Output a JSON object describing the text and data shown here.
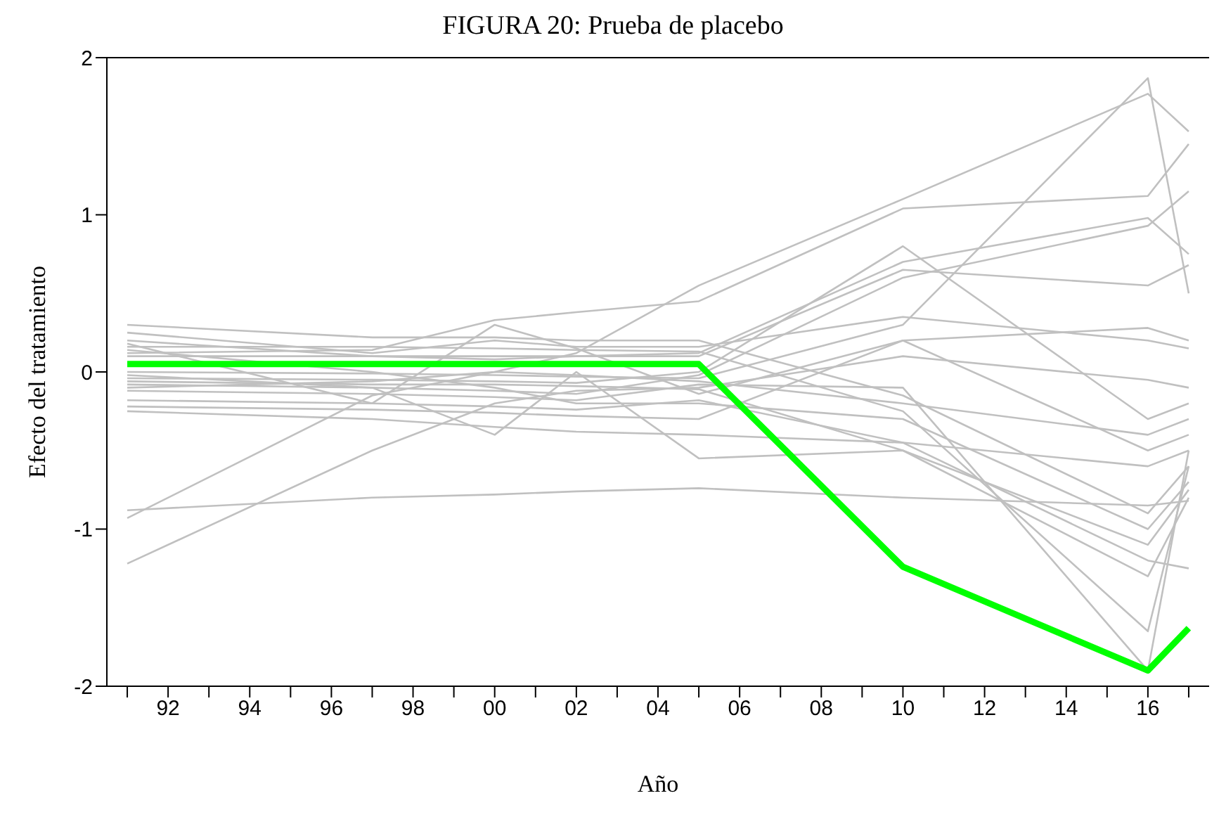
{
  "chart_data": {
    "type": "line",
    "title": "FIGURA 20: Prueba de placebo",
    "xlabel": "Año",
    "ylabel": "Efecto del tratamiento",
    "x": [
      1991,
      1997,
      2000,
      2002,
      2005,
      2010,
      2016,
      2017
    ],
    "xlim": [
      1990.5,
      2017.5
    ],
    "xticks": [
      {
        "value": 1991,
        "label": null
      },
      {
        "value": 1992,
        "label": "92"
      },
      {
        "value": 1993,
        "label": null
      },
      {
        "value": 1994,
        "label": "94"
      },
      {
        "value": 1995,
        "label": null
      },
      {
        "value": 1996,
        "label": "96"
      },
      {
        "value": 1997,
        "label": null
      },
      {
        "value": 1998,
        "label": "98"
      },
      {
        "value": 1999,
        "label": null
      },
      {
        "value": 2000,
        "label": "00"
      },
      {
        "value": 2001,
        "label": null
      },
      {
        "value": 2002,
        "label": "02"
      },
      {
        "value": 2003,
        "label": null
      },
      {
        "value": 2004,
        "label": "04"
      },
      {
        "value": 2005,
        "label": null
      },
      {
        "value": 2006,
        "label": "06"
      },
      {
        "value": 2007,
        "label": null
      },
      {
        "value": 2008,
        "label": "08"
      },
      {
        "value": 2009,
        "label": null
      },
      {
        "value": 2010,
        "label": "10"
      },
      {
        "value": 2011,
        "label": null
      },
      {
        "value": 2012,
        "label": "12"
      },
      {
        "value": 2013,
        "label": null
      },
      {
        "value": 2014,
        "label": "14"
      },
      {
        "value": 2015,
        "label": null
      },
      {
        "value": 2016,
        "label": "16"
      },
      {
        "value": 2017,
        "label": null
      }
    ],
    "ylim": [
      -2,
      2
    ],
    "yticks": [
      -2,
      -1,
      0,
      1,
      2
    ],
    "marker": "none",
    "line_style": "solid",
    "series": [
      {
        "color": "#c0c0c0",
        "values": [
          0.12,
          0.14,
          0.33,
          0.38,
          0.45,
          1.04,
          1.12,
          1.45
        ]
      },
      {
        "color": "#c0c0c0",
        "values": [
          -0.1,
          -0.06,
          0.0,
          0.12,
          0.55,
          1.1,
          1.77,
          1.53
        ]
      },
      {
        "color": "#c0c0c0",
        "values": [
          0.0,
          -0.01,
          -0.02,
          -0.03,
          -0.04,
          0.3,
          1.87,
          0.5
        ]
      },
      {
        "color": "#c0c0c0",
        "values": [
          -0.04,
          -0.05,
          -0.06,
          -0.07,
          0.0,
          0.8,
          -0.3,
          -0.2
        ]
      },
      {
        "color": "#c0c0c0",
        "values": [
          0.2,
          0.1,
          0.08,
          0.1,
          0.12,
          0.7,
          0.98,
          0.75
        ]
      },
      {
        "color": "#c0c0c0",
        "values": [
          -0.08,
          -0.1,
          -0.12,
          -0.14,
          -0.02,
          0.6,
          0.93,
          1.15
        ]
      },
      {
        "color": "#c0c0c0",
        "values": [
          0.1,
          0.1,
          0.1,
          0.1,
          0.1,
          0.65,
          0.55,
          0.68
        ]
      },
      {
        "color": "#c0c0c0",
        "values": [
          0.25,
          0.12,
          0.2,
          0.16,
          0.16,
          0.35,
          0.2,
          0.15
        ]
      },
      {
        "color": "#c0c0c0",
        "values": [
          -0.25,
          -0.3,
          -0.35,
          -0.38,
          -0.4,
          -0.45,
          -0.6,
          -0.5
        ]
      },
      {
        "color": "#c0c0c0",
        "values": [
          -1.22,
          -0.5,
          -0.2,
          -0.12,
          -0.1,
          0.1,
          -0.05,
          -0.1
        ]
      },
      {
        "color": "#c0c0c0",
        "values": [
          -0.93,
          -0.15,
          0.0,
          -0.02,
          -0.06,
          -0.2,
          -0.4,
          -0.3
        ]
      },
      {
        "color": "#c0c0c0",
        "values": [
          -0.88,
          -0.8,
          -0.78,
          -0.76,
          -0.74,
          -0.8,
          -0.85,
          -0.82
        ]
      },
      {
        "color": "#c0c0c0",
        "values": [
          0.18,
          -0.2,
          0.3,
          0.15,
          -0.14,
          0.2,
          -0.5,
          -0.4
        ]
      },
      {
        "color": "#c0c0c0",
        "values": [
          0.14,
          0.0,
          -0.1,
          -0.2,
          -0.2,
          -0.3,
          -1.0,
          -0.7
        ]
      },
      {
        "color": "#c0c0c0",
        "values": [
          -0.02,
          -0.1,
          -0.4,
          0.0,
          -0.55,
          -0.5,
          -1.3,
          -0.8
        ]
      },
      {
        "color": "#c0c0c0",
        "values": [
          -0.12,
          -0.14,
          -0.16,
          -0.18,
          -0.08,
          -0.1,
          -1.9,
          -0.5
        ]
      },
      {
        "color": "#c0c0c0",
        "values": [
          0.16,
          0.16,
          0.15,
          0.14,
          0.13,
          -0.25,
          -1.65,
          -0.6
        ]
      },
      {
        "color": "#c0c0c0",
        "values": [
          -0.18,
          -0.2,
          -0.22,
          -0.24,
          -0.18,
          -0.45,
          -1.2,
          -1.25
        ]
      },
      {
        "color": "#c0c0c0",
        "values": [
          -0.06,
          -0.08,
          -0.08,
          -0.09,
          -0.11,
          -0.5,
          -1.1,
          -0.75
        ]
      },
      {
        "color": "#c0c0c0",
        "values": [
          -0.22,
          -0.24,
          -0.26,
          -0.28,
          -0.3,
          0.2,
          0.28,
          0.2
        ]
      },
      {
        "color": "#c0c0c0",
        "values": [
          0.3,
          0.22,
          0.22,
          0.2,
          0.2,
          -0.15,
          -0.9,
          -0.6
        ]
      },
      {
        "color": "#00ff00",
        "values": [
          0.05,
          0.05,
          0.05,
          0.05,
          0.05,
          -1.24,
          -1.9,
          -1.63
        ]
      }
    ]
  }
}
